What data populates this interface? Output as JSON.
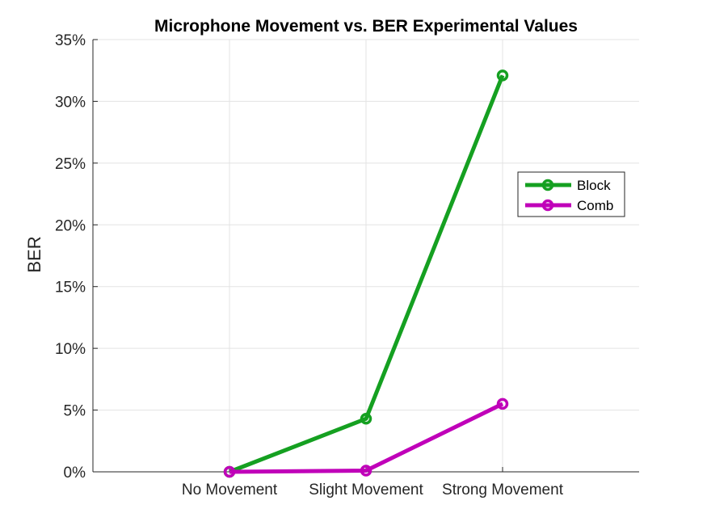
{
  "chart_data": {
    "type": "line",
    "title": "Microphone Movement vs. BER Experimental Values",
    "xlabel": "",
    "ylabel": "BER",
    "categories": [
      "No Movement",
      "Slight Movement",
      "Strong Movement"
    ],
    "x_range": [
      0,
      4
    ],
    "ylim": [
      0,
      35
    ],
    "y_ticks": [
      0,
      5,
      10,
      15,
      20,
      25,
      30,
      35
    ],
    "y_tick_labels": [
      "0%",
      "5%",
      "10%",
      "15%",
      "20%",
      "25%",
      "30%",
      "35%"
    ],
    "grid": true,
    "legend_position": "right",
    "series": [
      {
        "name": "Block",
        "color": "#15A021",
        "values": [
          0.0,
          4.3,
          32.1
        ]
      },
      {
        "name": "Comb",
        "color": "#C000B9",
        "values": [
          0.0,
          0.1,
          5.5
        ]
      }
    ]
  }
}
